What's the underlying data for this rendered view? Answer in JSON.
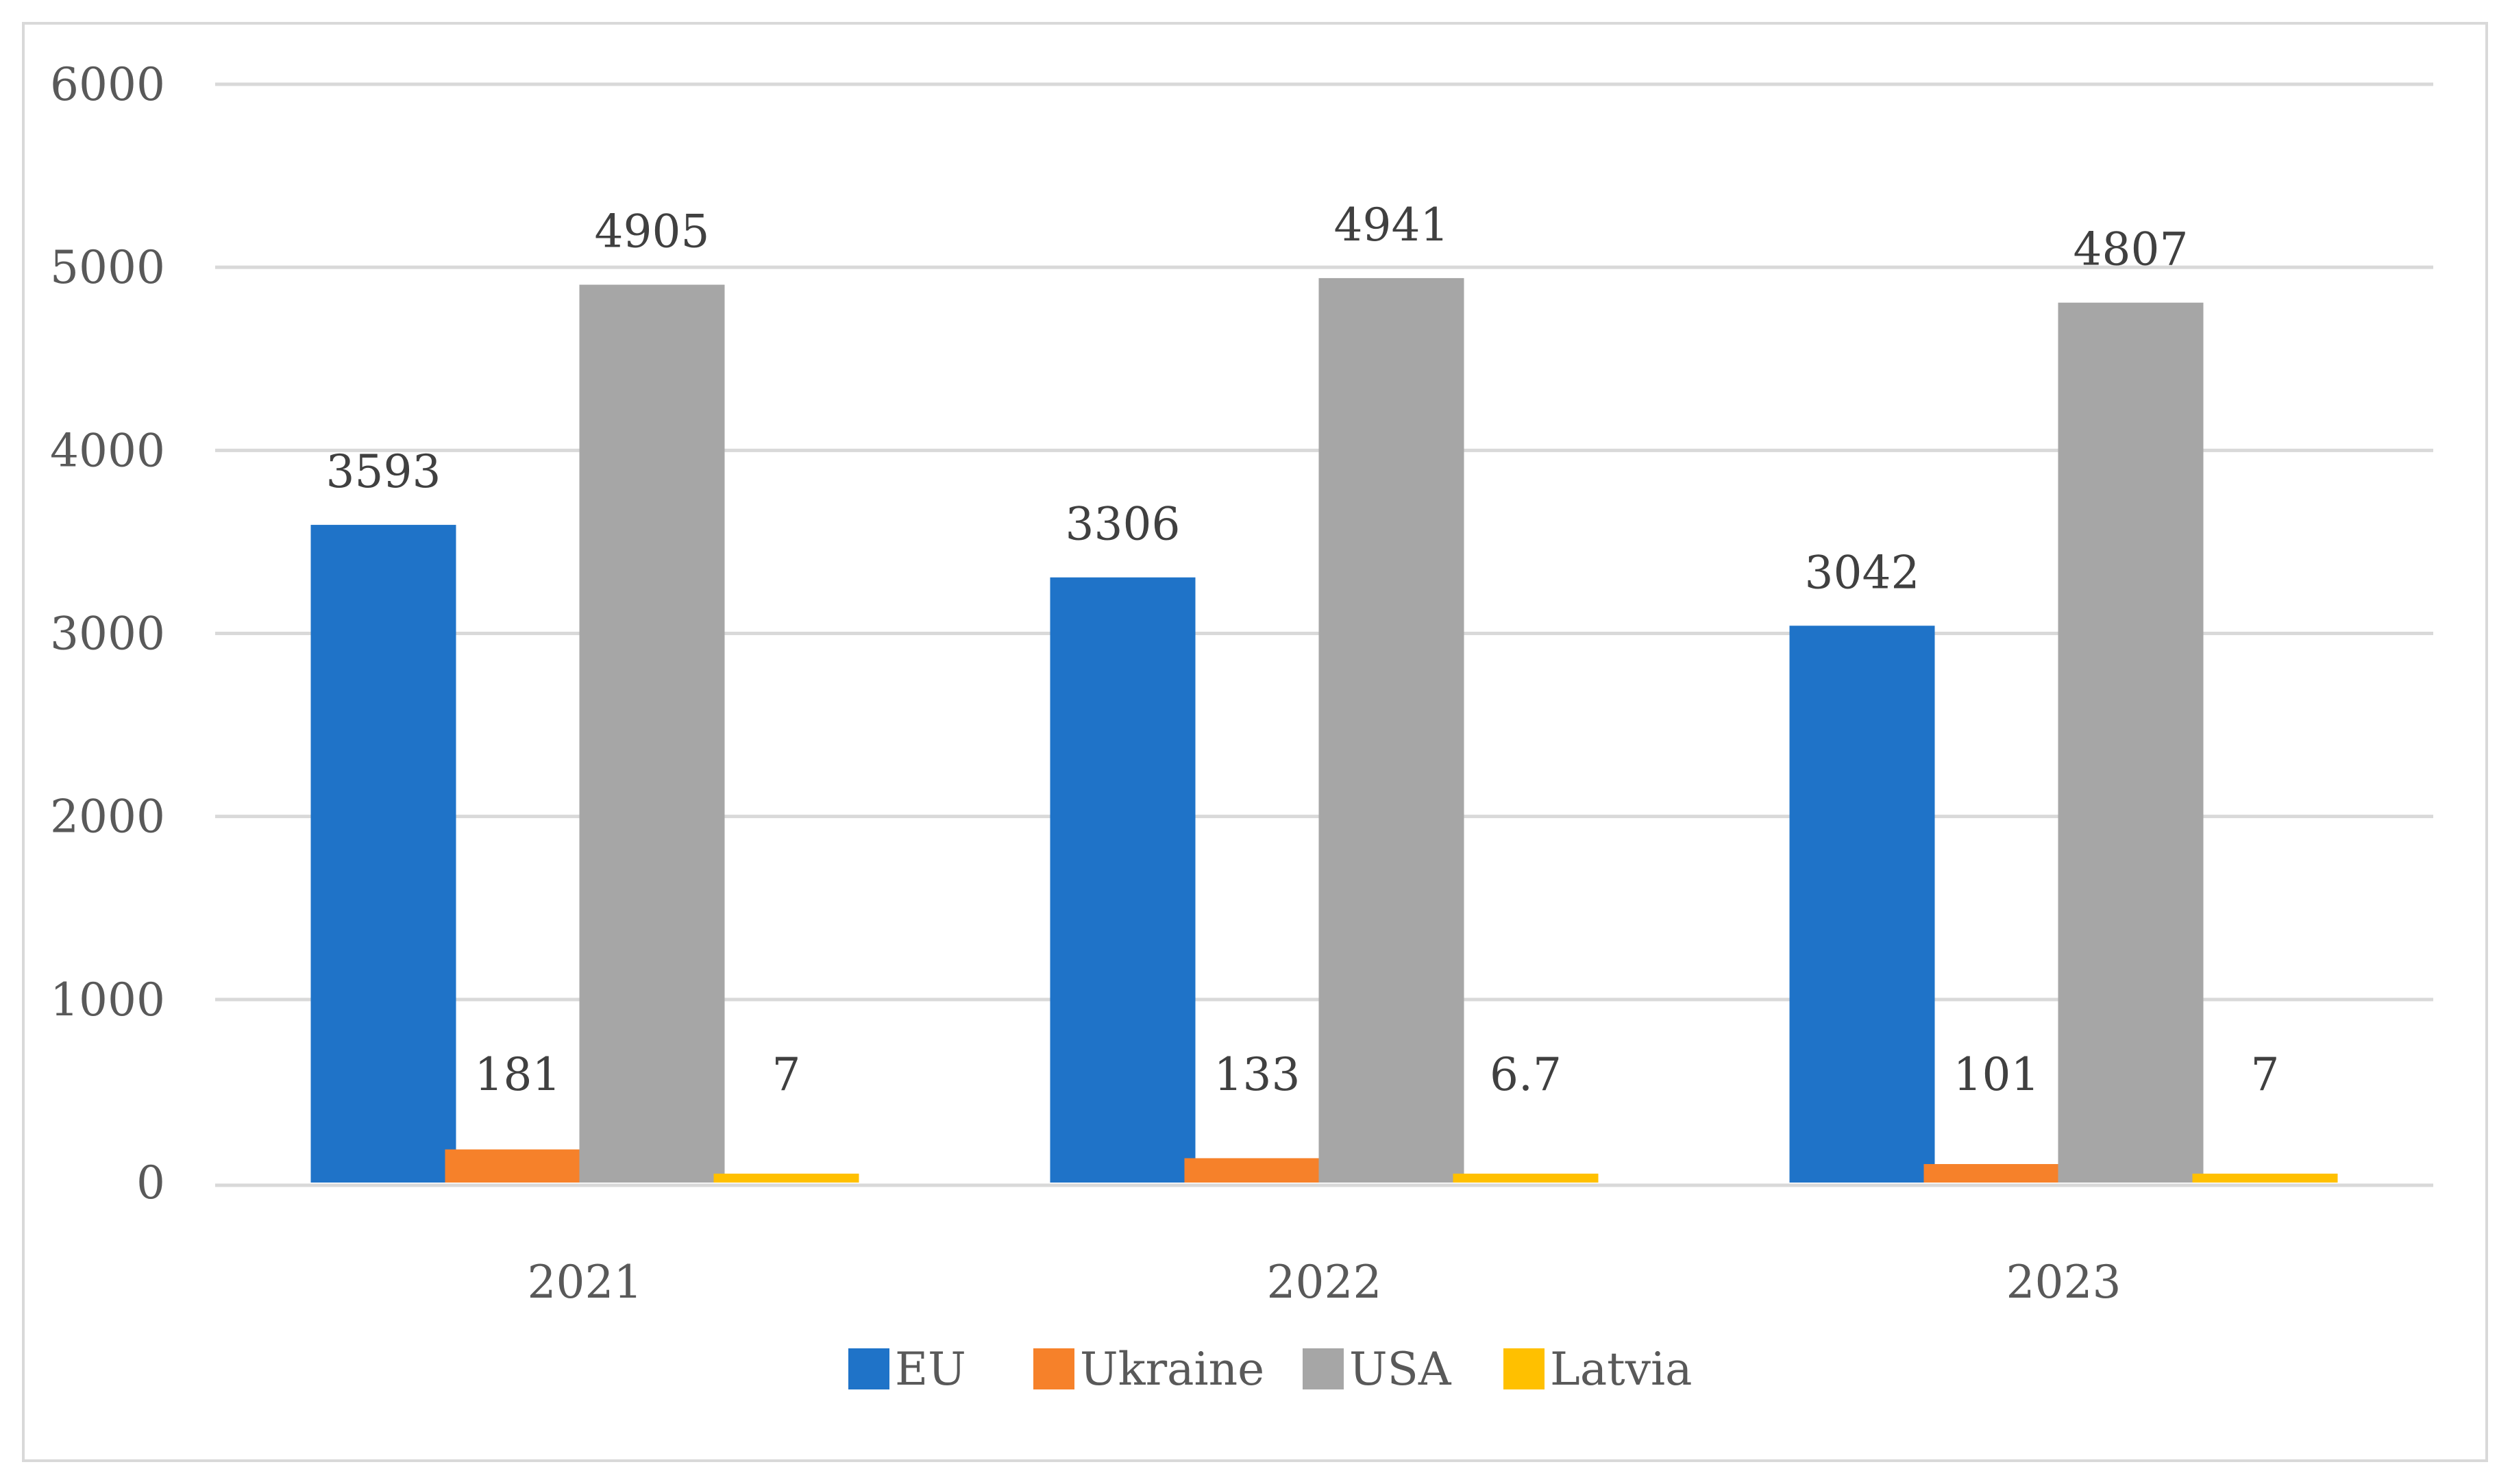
{
  "chart_data": {
    "type": "bar",
    "title": "",
    "xlabel": "",
    "ylabel": "",
    "ylim": [
      0,
      6000
    ],
    "yticks": [
      0,
      1000,
      2000,
      3000,
      4000,
      5000,
      6000
    ],
    "grid": true,
    "legend_position": "bottom",
    "categories": [
      "2021",
      "2022",
      "2023"
    ],
    "series": [
      {
        "name": "EU",
        "color": "#1f73c8",
        "values": [
          3593,
          3306,
          3042
        ],
        "labels": [
          "3593",
          "3306",
          "3042"
        ]
      },
      {
        "name": "Ukraine",
        "color": "#f6812a",
        "values": [
          181,
          133,
          101
        ],
        "labels": [
          "181",
          "133",
          "101"
        ]
      },
      {
        "name": "USA",
        "color": "#a6a6a6",
        "values": [
          4905,
          4941,
          4807
        ],
        "labels": [
          "4905",
          "4941",
          "4807"
        ]
      },
      {
        "name": "Latvia",
        "color": "#ffc000",
        "values": [
          7,
          6.7,
          7
        ],
        "labels": [
          "7",
          "6.7",
          "7"
        ]
      }
    ]
  }
}
